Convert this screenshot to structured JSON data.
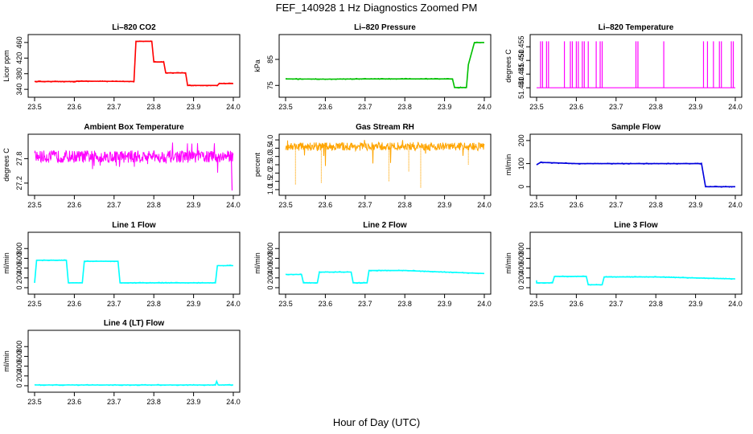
{
  "title": "FEF_140928  1 Hz Diagnostics Zoomed PM",
  "xlabel": "Hour of Day (UTC)",
  "colors": {
    "red": "#ff0000",
    "green": "#00c000",
    "magenta": "#ff00ff",
    "orange": "#ffa500",
    "blue": "#0000dd",
    "cyan": "#00ffff"
  },
  "chart_data": [
    {
      "type": "line",
      "title": "Li–820 CO2",
      "ylabel": "Licor ppm",
      "color": "#ff0000",
      "xlim": [
        23.5,
        24.0
      ],
      "ylim": [
        330,
        470
      ],
      "xticks": [
        "23.5",
        "23.6",
        "23.7",
        "23.8",
        "23.9",
        "24.0"
      ],
      "yticks": [
        "340",
        "380",
        "420",
        "460"
      ],
      "series": [
        {
          "x": [
            23.5,
            23.6,
            23.61,
            23.75,
            23.755,
            23.795,
            23.8,
            23.825,
            23.83,
            23.88,
            23.885,
            23.96,
            23.965,
            24.0
          ],
          "y": [
            360,
            360,
            361,
            360,
            463,
            463,
            410,
            410,
            382,
            382,
            350,
            350,
            355,
            355
          ]
        }
      ]
    },
    {
      "type": "line",
      "title": "Li–820 Pressure",
      "ylabel": "kPa",
      "color": "#00c000",
      "xlim": [
        23.5,
        24.0
      ],
      "ylim": [
        72,
        93
      ],
      "xticks": [
        "23.5",
        "23.6",
        "23.7",
        "23.8",
        "23.9",
        "24.0"
      ],
      "yticks": [
        "75",
        "85"
      ],
      "series": [
        {
          "x": [
            23.5,
            23.6,
            23.7,
            23.8,
            23.9,
            23.92,
            23.925,
            23.955,
            23.96,
            23.975,
            24.0
          ],
          "y": [
            77.5,
            77.4,
            77.5,
            77.5,
            77.5,
            77.5,
            74.2,
            74.2,
            83,
            91.5,
            91.5
          ]
        }
      ]
    },
    {
      "type": "line",
      "title": "Li–820 Temperature",
      "ylabel": "degrees C",
      "color": "#ff00ff",
      "xlim": [
        23.5,
        24.0
      ],
      "ylim": [
        51.438,
        51.458
      ],
      "xticks": [
        "23.5",
        "23.6",
        "23.7",
        "23.8",
        "23.9",
        "24.0"
      ],
      "yticks": [
        "51.440",
        "51.445",
        "51.450",
        "51.455"
      ],
      "spikes": [
        23.51,
        23.515,
        23.525,
        23.53,
        23.57,
        23.585,
        23.59,
        23.6,
        23.605,
        23.615,
        23.62,
        23.63,
        23.65,
        23.66,
        23.665,
        23.75,
        23.755,
        23.82,
        23.92,
        23.93,
        23.945,
        23.96,
        23.965,
        23.99,
        23.995
      ],
      "base": 51.44,
      "top": 51.457
    },
    {
      "type": "line",
      "title": "Ambient Box Temperature",
      "ylabel": "degrees C",
      "color": "#ff00ff",
      "xlim": [
        23.5,
        24.0
      ],
      "ylim": [
        27.0,
        28.3
      ],
      "xticks": [
        "23.5",
        "23.6",
        "23.7",
        "23.8",
        "23.9",
        "24.0"
      ],
      "yticks": [
        "27.2",
        "27.8"
      ],
      "noise": {
        "center": 27.85,
        "amp": 0.15,
        "spike_low": 27.2,
        "spike_high": 28.2
      }
    },
    {
      "type": "line",
      "title": "Gas Stream RH",
      "ylabel": "percent",
      "color": "#ffa500",
      "xlim": [
        23.5,
        24.0
      ],
      "ylim": [
        0.9,
        4.1
      ],
      "xticks": [
        "23.5",
        "23.6",
        "23.7",
        "23.8",
        "23.9",
        "24.0"
      ],
      "yticks": [
        "1.0",
        "1.5",
        "2.0",
        "2.5",
        "3.0",
        "3.5",
        "4.0"
      ],
      "noise": {
        "center": 3.6,
        "amp": 0.25,
        "spike_low": 1.2,
        "spike_high": 4.0
      },
      "dips": [
        [
          23.525,
          1.3
        ],
        [
          23.59,
          1.4
        ],
        [
          23.76,
          1.5
        ],
        [
          23.81,
          2.1
        ],
        [
          23.84,
          1.1
        ],
        [
          23.96,
          2.5
        ]
      ]
    },
    {
      "type": "line",
      "title": "Sample Flow",
      "ylabel": "ml/min",
      "color": "#0000dd",
      "xlim": [
        23.5,
        24.0
      ],
      "ylim": [
        -20,
        210
      ],
      "xticks": [
        "23.5",
        "23.6",
        "23.7",
        "23.8",
        "23.9",
        "24.0"
      ],
      "yticks": [
        "0",
        "100",
        "200"
      ],
      "series": [
        {
          "x": [
            23.5,
            23.51,
            23.6,
            23.7,
            23.8,
            23.915,
            23.925,
            24.0
          ],
          "y": [
            95,
            105,
            100,
            100,
            100,
            100,
            0,
            0
          ]
        }
      ]
    },
    {
      "type": "line",
      "title": "Line 1 Flow",
      "ylabel": "ml/min",
      "color": "#00ffff",
      "xlim": [
        23.5,
        24.0
      ],
      "ylim": [
        -50,
        1050
      ],
      "xticks": [
        "23.5",
        "23.6",
        "23.7",
        "23.8",
        "23.9",
        "24.0"
      ],
      "yticks": [
        "0",
        "200",
        "400",
        "600",
        "800"
      ],
      "series": [
        {
          "x": [
            23.5,
            23.505,
            23.58,
            23.585,
            23.62,
            23.625,
            23.71,
            23.715,
            23.955,
            23.96,
            24.0
          ],
          "y": [
            100,
            560,
            560,
            100,
            100,
            540,
            540,
            100,
            100,
            450,
            450
          ]
        }
      ]
    },
    {
      "type": "line",
      "title": "Line 2 Flow",
      "ylabel": "ml/min",
      "color": "#00ffff",
      "xlim": [
        23.5,
        24.0
      ],
      "ylim": [
        -50,
        1050
      ],
      "xticks": [
        "23.5",
        "23.6",
        "23.7",
        "23.8",
        "23.9",
        "24.0"
      ],
      "yticks": [
        "0",
        "200",
        "400",
        "600",
        "800"
      ],
      "series": [
        {
          "x": [
            23.5,
            23.54,
            23.545,
            23.58,
            23.585,
            23.665,
            23.67,
            23.705,
            23.71,
            23.8,
            23.9,
            24.0
          ],
          "y": [
            270,
            270,
            100,
            100,
            320,
            320,
            100,
            100,
            350,
            350,
            320,
            290
          ]
        }
      ]
    },
    {
      "type": "line",
      "title": "Line 3 Flow",
      "ylabel": "ml/min",
      "color": "#00ffff",
      "xlim": [
        23.5,
        24.0
      ],
      "ylim": [
        -50,
        1050
      ],
      "xticks": [
        "23.5",
        "23.6",
        "23.7",
        "23.8",
        "23.9",
        "24.0"
      ],
      "yticks": [
        "0",
        "200",
        "400",
        "600",
        "800"
      ],
      "series": [
        {
          "x": [
            23.5,
            23.5,
            23.54,
            23.545,
            23.625,
            23.63,
            23.665,
            23.67,
            23.8,
            23.9,
            24.0
          ],
          "y": [
            150,
            100,
            100,
            230,
            230,
            60,
            60,
            220,
            220,
            200,
            180
          ]
        }
      ]
    },
    {
      "type": "line",
      "title": "Line 4 (LT) Flow",
      "ylabel": "ml/min",
      "color": "#00ffff",
      "xlim": [
        23.5,
        24.0
      ],
      "ylim": [
        -50,
        1050
      ],
      "xticks": [
        "23.5",
        "23.6",
        "23.7",
        "23.8",
        "23.9",
        "24.0"
      ],
      "yticks": [
        "0",
        "200",
        "400",
        "600",
        "800"
      ],
      "series": [
        {
          "x": [
            23.5,
            23.955,
            23.958,
            23.962,
            24.0
          ],
          "y": [
            15,
            15,
            90,
            15,
            15
          ]
        }
      ]
    }
  ]
}
